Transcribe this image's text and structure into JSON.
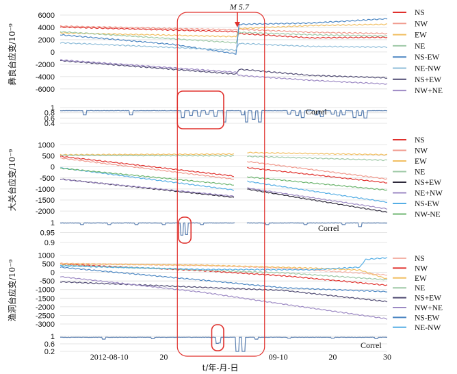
{
  "chart_data": {
    "type": "line",
    "x_axis": {
      "label": "t/年-月-日",
      "ticks": [
        "2012-08-10",
        "20",
        "09-10",
        "20",
        "30"
      ],
      "tick_t": [
        3,
        13,
        34,
        44,
        54
      ],
      "t_range": [
        -6,
        54
      ]
    },
    "earthquake": {
      "label": "M 5.7",
      "t": 26.5,
      "color": "#e0302c"
    },
    "highlight_windows": [
      {
        "t_range": [
          15.5,
          31.5
        ],
        "color": "#e0302c"
      },
      {
        "panel": "yiliang_correl",
        "t_range": [
          15.5,
          24
        ],
        "color": "#e0302c"
      },
      {
        "panel": "daguan_correl",
        "t_range": [
          15.7,
          18
        ],
        "color": "#e0302c"
      },
      {
        "panel": "yudong_correl",
        "t_range": [
          21.8,
          24
        ],
        "color": "#e0302c"
      }
    ],
    "panels": [
      {
        "id": "yiliang",
        "ylabel": "彝良台应变/10⁻⁹",
        "ylim": [
          -6800,
          6000
        ],
        "yticks": [
          6000,
          4000,
          2000,
          0,
          -2000,
          -4000,
          -6000
        ],
        "gap": null,
        "series": [
          {
            "name": "NS",
            "color": "#e0302c",
            "points": [
              [
                -6,
                4050
              ],
              [
                26.3,
                3300
              ],
              [
                26.8,
                3000
              ],
              [
                40,
                2300
              ],
              [
                54,
                2400
              ]
            ]
          },
          {
            "name": "NW",
            "color": "#f09a8e",
            "points": [
              [
                -6,
                4200
              ],
              [
                26.3,
                3600
              ],
              [
                26.8,
                3700
              ],
              [
                40,
                3200
              ],
              [
                54,
                3000
              ]
            ]
          },
          {
            "name": "EW",
            "color": "#f1bf62",
            "points": [
              [
                -6,
                3100
              ],
              [
                26.3,
                2500
              ],
              [
                26.8,
                3800
              ],
              [
                40,
                4300
              ],
              [
                54,
                4500
              ]
            ]
          },
          {
            "name": "NE",
            "color": "#9ec8a6",
            "points": [
              [
                -6,
                3300
              ],
              [
                26.3,
                1500
              ],
              [
                26.8,
                3200
              ],
              [
                40,
                2800
              ],
              [
                54,
                2600
              ]
            ]
          },
          {
            "name": "NS-EW",
            "color": "#4b86c2",
            "points": [
              [
                -6,
                2800
              ],
              [
                15,
                1200
              ],
              [
                26.3,
                -300
              ],
              [
                26.8,
                4500
              ],
              [
                40,
                4700
              ],
              [
                54,
                5400
              ]
            ]
          },
          {
            "name": "NE-NW",
            "color": "#8fbdd9",
            "points": [
              [
                -6,
                1500
              ],
              [
                26.3,
                300
              ],
              [
                26.8,
                1400
              ],
              [
                40,
                900
              ],
              [
                54,
                800
              ]
            ]
          },
          {
            "name": "NS+EW",
            "color": "#4f4a72",
            "points": [
              [
                -6,
                -1400
              ],
              [
                26.3,
                -3600
              ],
              [
                26.8,
                -2800
              ],
              [
                40,
                -3800
              ],
              [
                54,
                -4200
              ]
            ]
          },
          {
            "name": "NW+NE",
            "color": "#9d8ac4",
            "points": [
              [
                -6,
                -1300
              ],
              [
                26.3,
                -3300
              ],
              [
                26.8,
                -3800
              ],
              [
                40,
                -4600
              ],
              [
                54,
                -5200
              ]
            ]
          }
        ]
      },
      {
        "id": "yiliang_correl",
        "ylim": [
          0.4,
          1.0
        ],
        "yticks": [
          1,
          0.8,
          0.6,
          0.4
        ],
        "label": "Correl",
        "color": "#5a7fb0",
        "baseline": 0.88,
        "dips": [
          [
            -1.5,
            0.72
          ],
          [
            7,
            0.72
          ],
          [
            16.5,
            0.62
          ],
          [
            18,
            0.7
          ],
          [
            19.5,
            0.67
          ],
          [
            21,
            0.74
          ],
          [
            22.5,
            0.66
          ],
          [
            24.2,
            0.45
          ],
          [
            27.5,
            0.72
          ],
          [
            28.2,
            0.45
          ],
          [
            29.5,
            0.55
          ],
          [
            30.6,
            0.45
          ],
          [
            36,
            0.75
          ],
          [
            37.5,
            0.7
          ],
          [
            38.5,
            0.62
          ],
          [
            41,
            0.72
          ],
          [
            42,
            0.65
          ],
          [
            44,
            0.75
          ],
          [
            45,
            0.68
          ],
          [
            46,
            0.72
          ],
          [
            48,
            0.62
          ],
          [
            49,
            0.7
          ],
          [
            50,
            0.6
          ]
        ]
      },
      {
        "id": "daguan",
        "ylabel": "大关台应变/10⁻⁹",
        "ylim": [
          -2150,
          950
        ],
        "yticks": [
          1000,
          500,
          0,
          -500,
          -1000,
          -1500,
          -2000
        ],
        "gap": [
          26,
          28.2
        ],
        "series": [
          {
            "name": "NS",
            "color": "#e0302c",
            "points": [
              [
                -6,
                480
              ],
              [
                26,
                -420
              ],
              [
                28.2,
                -30
              ],
              [
                54,
                -720
              ]
            ]
          },
          {
            "name": "NW",
            "color": "#f09a8e",
            "points": [
              [
                -6,
                400
              ],
              [
                26,
                -560
              ],
              [
                28.2,
                250
              ],
              [
                54,
                -550
              ]
            ]
          },
          {
            "name": "EW",
            "color": "#f1bf62",
            "points": [
              [
                -6,
                550
              ],
              [
                26,
                580
              ],
              [
                28.2,
                650
              ],
              [
                54,
                550
              ]
            ]
          },
          {
            "name": "NE",
            "color": "#9ec8a6",
            "points": [
              [
                -6,
                530
              ],
              [
                26,
                500
              ],
              [
                28.2,
                480
              ],
              [
                54,
                300
              ]
            ]
          },
          {
            "name": "NS+EW",
            "color": "#2e2a3b",
            "points": [
              [
                -6,
                -550
              ],
              [
                26,
                -1380
              ],
              [
                28.2,
                -1000
              ],
              [
                54,
                -2050
              ]
            ]
          },
          {
            "name": "NE+NW",
            "color": "#9d8ac4",
            "points": [
              [
                -6,
                -560
              ],
              [
                26,
                -1330
              ],
              [
                28.2,
                -950
              ],
              [
                54,
                -1900
              ]
            ]
          },
          {
            "name": "NS-EW",
            "color": "#55aee5",
            "points": [
              [
                -6,
                -40
              ],
              [
                26,
                -1050
              ],
              [
                28.2,
                -650
              ],
              [
                54,
                -1600
              ]
            ]
          },
          {
            "name": "NW-NE",
            "color": "#6db56f",
            "points": [
              [
                -6,
                -60
              ],
              [
                26,
                -820
              ],
              [
                28.2,
                -450
              ],
              [
                54,
                -1050
              ]
            ]
          }
        ]
      },
      {
        "id": "daguan_correl",
        "ylim": [
          0.9,
          1.0
        ],
        "yticks": [
          1,
          0.95,
          0.9
        ],
        "label": "Correl",
        "color": "#5a7fb0",
        "baseline": 0.998,
        "gap": [
          26,
          28.2
        ],
        "dips": [
          [
            -2,
            0.99
          ],
          [
            3,
            0.99
          ],
          [
            8,
            0.99
          ],
          [
            13,
            0.99
          ],
          [
            16.3,
            0.937
          ],
          [
            17.2,
            0.94
          ],
          [
            20,
            0.99
          ],
          [
            32,
            0.99
          ],
          [
            39,
            0.99
          ],
          [
            46,
            0.99
          ],
          [
            49,
            0.98
          ]
        ]
      },
      {
        "id": "yudong",
        "ylabel": "渔洞台应变/10⁻⁹",
        "ylim": [
          -3200,
          1100
        ],
        "yticks": [
          1000,
          500,
          0,
          -500,
          -1000,
          -1500,
          -2000,
          -2500,
          -3000
        ],
        "gap": null,
        "series": [
          {
            "name": "NS",
            "color": "#f4b3a8",
            "points": [
              [
                -6,
                520
              ],
              [
                20,
                400
              ],
              [
                35,
                250
              ],
              [
                54,
                -150
              ]
            ]
          },
          {
            "name": "NW",
            "color": "#e0302c",
            "points": [
              [
                -6,
                480
              ],
              [
                20,
                100
              ],
              [
                35,
                -200
              ],
              [
                54,
                -750
              ]
            ]
          },
          {
            "name": "EW",
            "color": "#f1bf62",
            "points": [
              [
                -6,
                500
              ],
              [
                20,
                420
              ],
              [
                40,
                250
              ],
              [
                49,
                130
              ],
              [
                54,
                -380
              ]
            ]
          },
          {
            "name": "NE",
            "color": "#9ec8a6",
            "points": [
              [
                -6,
                420
              ],
              [
                20,
                130
              ],
              [
                35,
                -30
              ],
              [
                54,
                -430
              ]
            ]
          },
          {
            "name": "NS+EW",
            "color": "#4f4a72",
            "points": [
              [
                -6,
                -550
              ],
              [
                20,
                -870
              ],
              [
                35,
                -1050
              ],
              [
                54,
                -1700
              ]
            ]
          },
          {
            "name": "NW+NE",
            "color": "#9d8ac4",
            "points": [
              [
                -6,
                -250
              ],
              [
                20,
                -1150
              ],
              [
                35,
                -1850
              ],
              [
                54,
                -2700
              ]
            ]
          },
          {
            "name": "NS-EW",
            "color": "#4b86c2",
            "points": [
              [
                -6,
                300
              ],
              [
                20,
                -450
              ],
              [
                35,
                -900
              ],
              [
                54,
                -1120
              ]
            ]
          },
          {
            "name": "NE-NW",
            "color": "#55aee5",
            "points": [
              [
                -6,
                380
              ],
              [
                20,
                170
              ],
              [
                40,
                150
              ],
              [
                49,
                300
              ],
              [
                50,
                750
              ],
              [
                54,
                850
              ]
            ]
          }
        ]
      },
      {
        "id": "yudong_correl",
        "ylim": [
          0.2,
          1.0
        ],
        "yticks": [
          1,
          0.6,
          0.2
        ],
        "label": "Correl",
        "color": "#5a7fb0",
        "baseline": 0.95,
        "dips": [
          [
            2,
            0.85
          ],
          [
            11,
            0.88
          ],
          [
            22.8,
            0.62
          ],
          [
            23.2,
            0.65
          ],
          [
            26.5,
            0.2
          ],
          [
            27.6,
            0.2
          ],
          [
            30,
            0.85
          ],
          [
            36,
            0.9
          ],
          [
            44,
            0.9
          ],
          [
            52,
            0.88
          ]
        ]
      }
    ]
  }
}
